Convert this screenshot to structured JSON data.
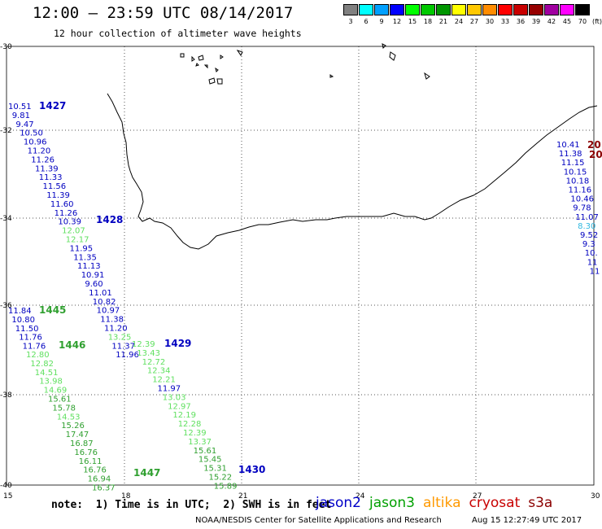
{
  "header": {
    "title": "12:00 – 23:59 UTC 08/14/2017",
    "subtitle": "12 hour collection of altimeter wave heights"
  },
  "legend": {
    "unit_suffix": "(ft)",
    "bins": [
      {
        "label": "3",
        "color": "#808080"
      },
      {
        "label": "6",
        "color": "#00ffff"
      },
      {
        "label": "9",
        "color": "#00a0ff"
      },
      {
        "label": "12",
        "color": "#0000ff"
      },
      {
        "label": "15",
        "color": "#00ff00"
      },
      {
        "label": "18",
        "color": "#00c800"
      },
      {
        "label": "21",
        "color": "#009600"
      },
      {
        "label": "24",
        "color": "#ffff00"
      },
      {
        "label": "27",
        "color": "#ffc800"
      },
      {
        "label": "30",
        "color": "#ff8c00"
      },
      {
        "label": "33",
        "color": "#ff0000"
      },
      {
        "label": "36",
        "color": "#c80000"
      },
      {
        "label": "39",
        "color": "#960000"
      },
      {
        "label": "42",
        "color": "#a000a0"
      },
      {
        "label": "45",
        "color": "#ff00ff"
      },
      {
        "label": "70",
        "color": "#000000"
      }
    ]
  },
  "axes": {
    "lon_ticks": [
      "15",
      "18",
      "21",
      "24",
      "27",
      "30"
    ],
    "lat_ticks": [
      "-30",
      "-32",
      "-34",
      "-36",
      "-38",
      "-40"
    ]
  },
  "track_colors": {
    "blue": "#0000c0",
    "green": "#30a030",
    "light_green": "#60e060",
    "cyan": "#30b8e0",
    "dark_red": "#8b0000"
  },
  "tracks": [
    {
      "id": "track-1427",
      "pass": "1427",
      "pass_color": "blue",
      "values": [
        {
          "v": "10.51",
          "c": "blue"
        },
        {
          "v": "9.81",
          "c": "blue"
        },
        {
          "v": "9.47",
          "c": "blue"
        },
        {
          "v": "10.50",
          "c": "blue"
        },
        {
          "v": "10.96",
          "c": "blue"
        },
        {
          "v": "11.20",
          "c": "blue"
        },
        {
          "v": "11.26",
          "c": "blue"
        },
        {
          "v": "11.39",
          "c": "blue"
        },
        {
          "v": "11.33",
          "c": "blue"
        },
        {
          "v": "11.56",
          "c": "blue"
        },
        {
          "v": "11.39",
          "c": "blue"
        },
        {
          "v": "11.60",
          "c": "blue"
        },
        {
          "v": "11.26",
          "c": "blue"
        },
        {
          "v": "10.39",
          "c": "blue"
        },
        {
          "v": "12.07",
          "c": "light_green"
        },
        {
          "v": "12.17",
          "c": "light_green"
        },
        {
          "v": "11.95",
          "c": "blue"
        },
        {
          "v": "11.35",
          "c": "blue"
        },
        {
          "v": "11.13",
          "c": "blue"
        },
        {
          "v": "10.91",
          "c": "blue"
        },
        {
          "v": "9.60",
          "c": "blue"
        },
        {
          "v": "11.01",
          "c": "blue"
        },
        {
          "v": "10.82",
          "c": "blue"
        },
        {
          "v": "10.97",
          "c": "blue"
        },
        {
          "v": "11.38",
          "c": "blue"
        },
        {
          "v": "11.20",
          "c": "blue"
        },
        {
          "v": "13.25",
          "c": "light_green"
        },
        {
          "v": "11.37",
          "c": "blue"
        },
        {
          "v": "11.96",
          "c": "blue"
        }
      ]
    },
    {
      "id": "track-1428",
      "pass": "1428",
      "pass_color": "blue",
      "values": []
    },
    {
      "id": "track-1429",
      "pass": "1429",
      "pass_color": "blue",
      "values": [
        {
          "v": "12.39",
          "c": "light_green"
        },
        {
          "v": "13.43",
          "c": "light_green"
        },
        {
          "v": "12.72",
          "c": "light_green"
        },
        {
          "v": "12.34",
          "c": "light_green"
        },
        {
          "v": "12.21",
          "c": "light_green"
        },
        {
          "v": "11.97",
          "c": "blue"
        },
        {
          "v": "13.03",
          "c": "light_green"
        },
        {
          "v": "12.97",
          "c": "light_green"
        },
        {
          "v": "12.19",
          "c": "light_green"
        },
        {
          "v": "12.28",
          "c": "light_green"
        },
        {
          "v": "12.39",
          "c": "light_green"
        },
        {
          "v": "13.37",
          "c": "light_green"
        },
        {
          "v": "15.61",
          "c": "green"
        },
        {
          "v": "15.45",
          "c": "green"
        },
        {
          "v": "15.31",
          "c": "green"
        },
        {
          "v": "15.22",
          "c": "green"
        },
        {
          "v": "15.89",
          "c": "green"
        }
      ]
    },
    {
      "id": "track-1430",
      "pass": "1430",
      "pass_color": "blue",
      "values": []
    },
    {
      "id": "track-1445",
      "pass": "1445",
      "pass_color": "green",
      "values": [
        {
          "v": "11.84",
          "c": "blue"
        },
        {
          "v": "10.80",
          "c": "blue"
        },
        {
          "v": "11.50",
          "c": "blue"
        },
        {
          "v": "11.76",
          "c": "blue"
        },
        {
          "v": "11.76",
          "c": "blue"
        }
      ]
    },
    {
      "id": "track-1446",
      "pass": "1446",
      "pass_color": "green",
      "values": [
        {
          "v": "12.80",
          "c": "light_green"
        },
        {
          "v": "12.82",
          "c": "light_green"
        },
        {
          "v": "14.51",
          "c": "light_green"
        },
        {
          "v": "13.98",
          "c": "light_green"
        },
        {
          "v": "14.69",
          "c": "light_green"
        },
        {
          "v": "15.61",
          "c": "green"
        },
        {
          "v": "15.78",
          "c": "green"
        },
        {
          "v": "14.53",
          "c": "light_green"
        },
        {
          "v": "15.26",
          "c": "green"
        },
        {
          "v": "17.47",
          "c": "green"
        },
        {
          "v": "16.87",
          "c": "green"
        },
        {
          "v": "16.76",
          "c": "green"
        },
        {
          "v": "16.11",
          "c": "green"
        },
        {
          "v": "16.76",
          "c": "green"
        },
        {
          "v": "16.94",
          "c": "green"
        },
        {
          "v": "16.37",
          "c": "green"
        }
      ]
    },
    {
      "id": "track-1447",
      "pass": "1447",
      "pass_color": "green",
      "values": []
    },
    {
      "id": "track-east",
      "pass": "20",
      "pass_color": "dark_red",
      "values": [
        {
          "v": "10.41",
          "c": "blue"
        },
        {
          "v": "11.38",
          "c": "blue"
        },
        {
          "v": "11.15",
          "c": "blue"
        },
        {
          "v": "10.15",
          "c": "blue"
        },
        {
          "v": "10.18",
          "c": "blue"
        },
        {
          "v": "11.16",
          "c": "blue"
        },
        {
          "v": "10.46",
          "c": "blue"
        },
        {
          "v": "9.78",
          "c": "blue"
        },
        {
          "v": "11.07",
          "c": "blue"
        },
        {
          "v": "8.30",
          "c": "cyan"
        },
        {
          "v": "9.52",
          "c": "blue"
        },
        {
          "v": "9.3",
          "c": "blue"
        },
        {
          "v": "10.",
          "c": "blue"
        },
        {
          "v": "11",
          "c": "blue"
        },
        {
          "v": "11",
          "c": "blue"
        }
      ]
    },
    {
      "id": "track-east-2",
      "pass": "20",
      "pass_color": "dark_red",
      "values": []
    }
  ],
  "footer": {
    "note": "note:  1) Time is in UTC;  2) SWH is in feet",
    "satellites": [
      {
        "name": "jason2",
        "color": "#0000c8"
      },
      {
        "name": "jason3",
        "color": "#00a000"
      },
      {
        "name": "altika",
        "color": "#ff9900"
      },
      {
        "name": "cryosat",
        "color": "#c80000"
      },
      {
        "name": "s3a",
        "color": "#8b0000"
      }
    ],
    "credit": "NOAA/NESDIS Center for Satellite Applications and Research",
    "timestamp": "Aug 15 12:27:49 UTC 2017"
  }
}
